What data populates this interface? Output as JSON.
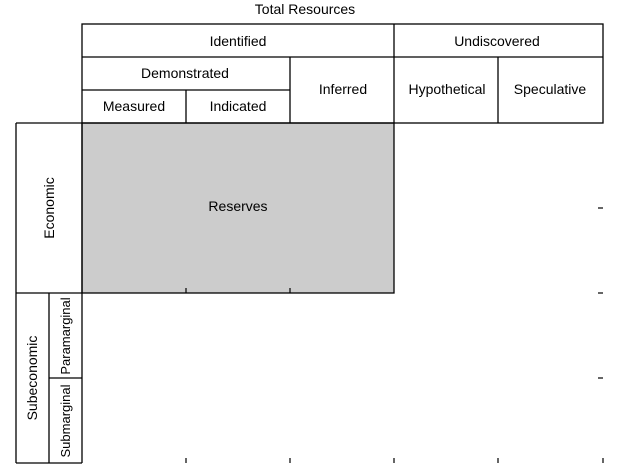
{
  "diagram": {
    "title": "Total Resources",
    "headers": {
      "identified": "Identified",
      "undiscovered": "Undiscovered",
      "demonstrated": "Demonstrated",
      "inferred": "Inferred",
      "hypothetical": "Hypothetical",
      "speculative": "Speculative",
      "measured": "Measured",
      "indicated": "Indicated"
    },
    "rows": {
      "economic": "Economic",
      "subeconomic": "Subeconomic",
      "paramarginal": "Paramarginal",
      "submarginal": "Submarginal"
    },
    "reserves_label": "Reserves",
    "reserves_fill": "#cccccc",
    "line_color": "#000000"
  }
}
